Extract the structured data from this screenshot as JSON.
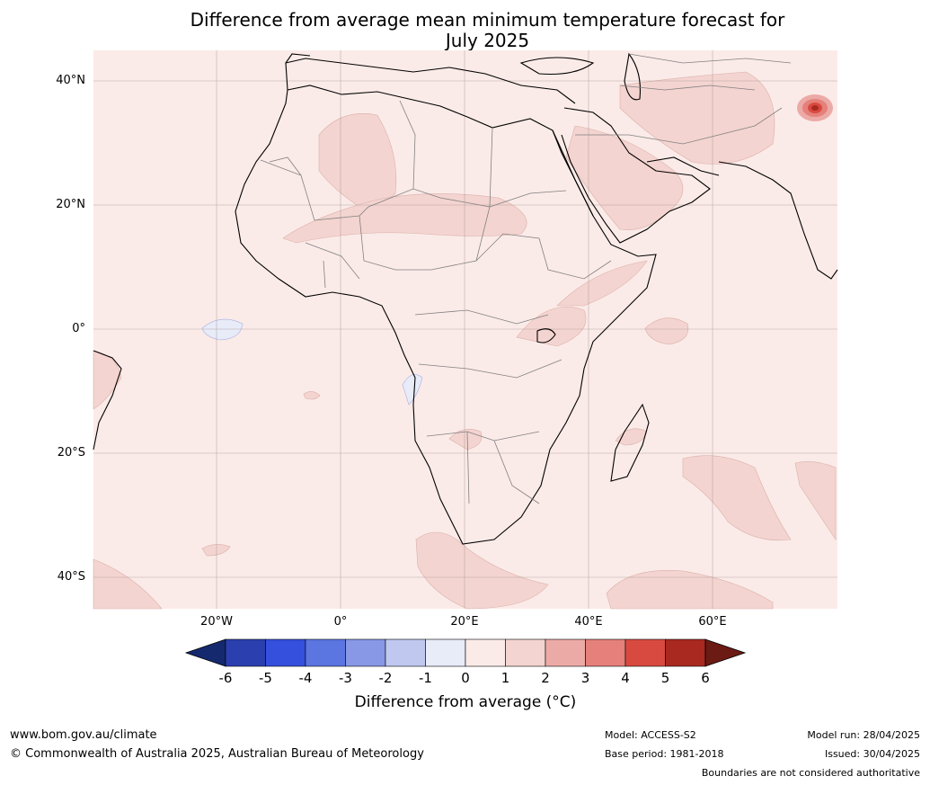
{
  "title_line1": "Difference from average mean minimum temperature forecast for",
  "title_line2": "July 2025",
  "lat_labels": [
    "40°N",
    "20°N",
    "0°",
    "20°S",
    "40°S"
  ],
  "lon_labels": [
    "20°W",
    "0°",
    "20°E",
    "40°E",
    "60°E"
  ],
  "colorbar": {
    "ticks": [
      "-6",
      "-5",
      "-4",
      "-3",
      "-2",
      "-1",
      "0",
      "1",
      "2",
      "3",
      "4",
      "5",
      "6"
    ],
    "colors": [
      "#15296e",
      "#2b3fae",
      "#3450dc",
      "#5b76e0",
      "#8898e6",
      "#c0c8f0",
      "#e8ebf8",
      "#fbebe8",
      "#f4d4d0",
      "#ecaaa6",
      "#e5807a",
      "#d84a40",
      "#a92920",
      "#6b1a14"
    ],
    "label": "Difference from average (°C)"
  },
  "footer": {
    "website": "www.bom.gov.au/climate",
    "copyright": "© Commonwealth of Australia 2025, Australian Bureau of Meteorology",
    "model": "Model: ACCESS-S2",
    "base_period": "Base period: 1981-2018",
    "model_run": "Model run: 28/04/2025",
    "issued": "Issued: 30/04/2025",
    "disclaimer": "Boundaries are not considered authoritative"
  }
}
